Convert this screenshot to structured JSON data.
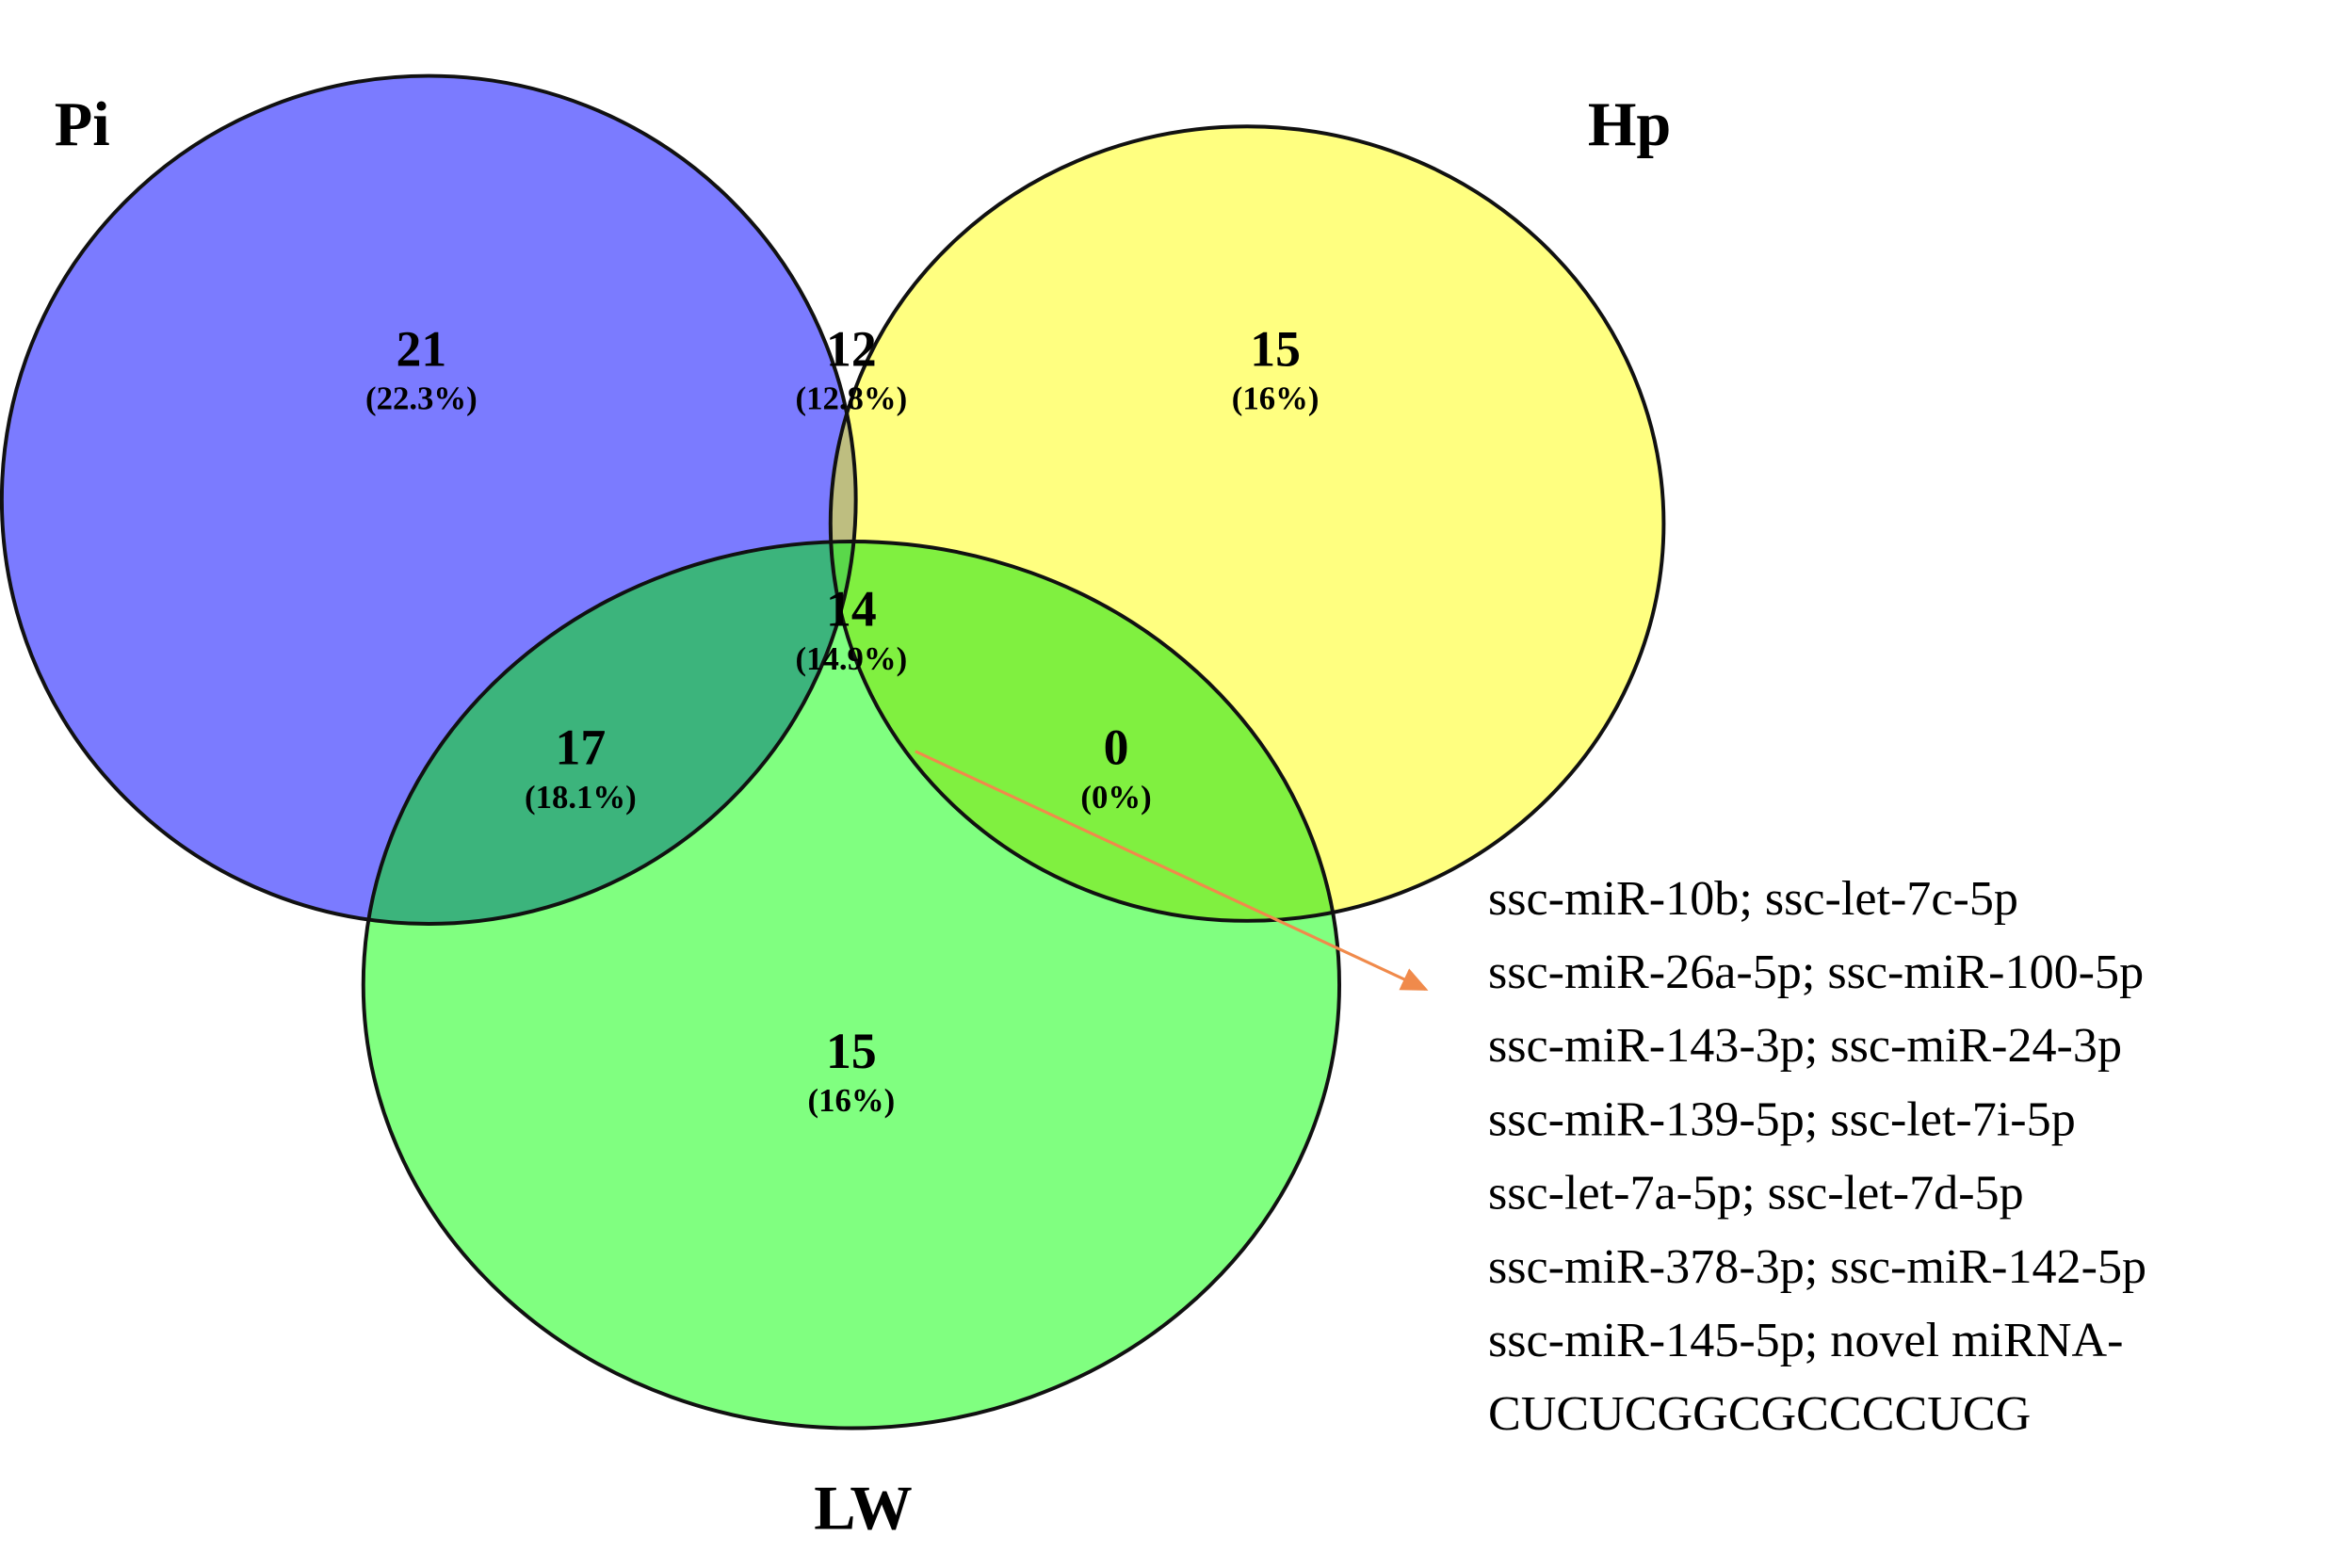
{
  "sets": [
    "Pi",
    "Hp",
    "LW"
  ],
  "regions": [
    {
      "count": "21",
      "percent": "(22.3%)"
    },
    {
      "count": "12",
      "percent": "(12.8%)"
    },
    {
      "count": "15",
      "percent": "(16%)"
    },
    {
      "count": "14",
      "percent": "(14.9%)"
    },
    {
      "count": "17",
      "percent": "(18.1%)"
    },
    {
      "count": "0",
      "percent": "(0%)"
    },
    {
      "count": "15",
      "percent": "(16%)"
    }
  ],
  "annotation": [
    "ssc-miR-10b; ssc-let-7c-5p",
    "ssc-miR-26a-5p; ssc-miR-100-5p",
    "ssc-miR-143-3p; ssc-miR-24-3p",
    "ssc-miR-139-5p; ssc-let-7i-5p",
    "ssc-let-7a-5p; ssc-let-7d-5p",
    "ssc-miR-378-3p; ssc-miR-142-5p",
    "ssc-miR-145-5p; novel miRNA-",
    "CUCUCGGCGCCCCUCG"
  ]
}
